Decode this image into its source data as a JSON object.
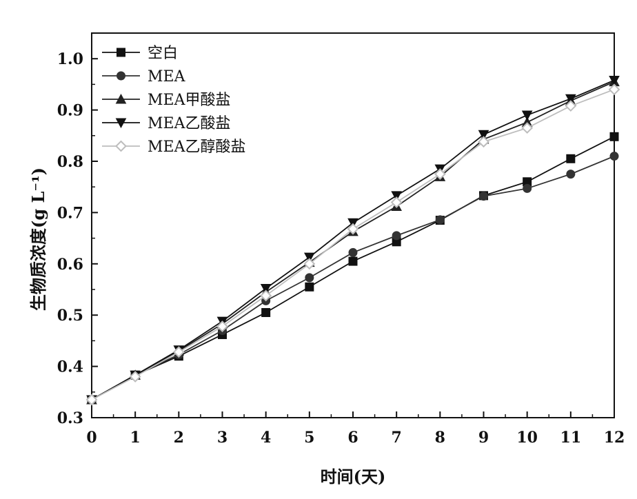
{
  "chart_data": {
    "type": "line",
    "xlabel": "时间(天)",
    "ylabel": "生物质浓度(g L⁻¹)",
    "xlim": [
      0,
      12
    ],
    "ylim": [
      0.3,
      1.05
    ],
    "x_ticks": [
      "0",
      "1",
      "2",
      "3",
      "4",
      "5",
      "6",
      "7",
      "8",
      "9",
      "10",
      "11",
      "12"
    ],
    "y_ticks": [
      "0.3",
      "0.4",
      "0.5",
      "0.6",
      "0.7",
      "0.8",
      "0.9",
      "1.0"
    ],
    "grid": false,
    "legend_position": "top-left",
    "x": [
      0,
      1,
      2,
      3,
      4,
      5,
      6,
      7,
      8,
      9,
      10,
      11,
      12
    ],
    "series": [
      {
        "name": "空白",
        "marker": "square",
        "color": "#111111",
        "values": [
          0.335,
          0.383,
          0.42,
          0.462,
          0.505,
          0.555,
          0.605,
          0.643,
          0.685,
          0.733,
          0.76,
          0.805,
          0.848
        ]
      },
      {
        "name": "MEA",
        "marker": "circle",
        "color": "#333333",
        "values": [
          0.335,
          0.383,
          0.423,
          0.47,
          0.528,
          0.573,
          0.622,
          0.655,
          0.686,
          0.732,
          0.747,
          0.775,
          0.81
        ]
      },
      {
        "name": "MEA甲酸盐",
        "marker": "triangle-up",
        "color": "#222222",
        "values": [
          0.335,
          0.383,
          0.43,
          0.483,
          0.545,
          0.603,
          0.663,
          0.712,
          0.77,
          0.843,
          0.876,
          0.918,
          0.955
        ]
      },
      {
        "name": "MEA乙酸盐",
        "marker": "triangle-down",
        "color": "#111111",
        "values": [
          0.335,
          0.383,
          0.432,
          0.488,
          0.552,
          0.613,
          0.68,
          0.733,
          0.785,
          0.852,
          0.89,
          0.922,
          0.958
        ]
      },
      {
        "name": "MEA乙醇酸盐",
        "marker": "diamond-open",
        "color": "#bdbdbd",
        "values": [
          0.335,
          0.38,
          0.428,
          0.478,
          0.538,
          0.6,
          0.668,
          0.72,
          0.775,
          0.838,
          0.865,
          0.908,
          0.94
        ]
      }
    ]
  }
}
